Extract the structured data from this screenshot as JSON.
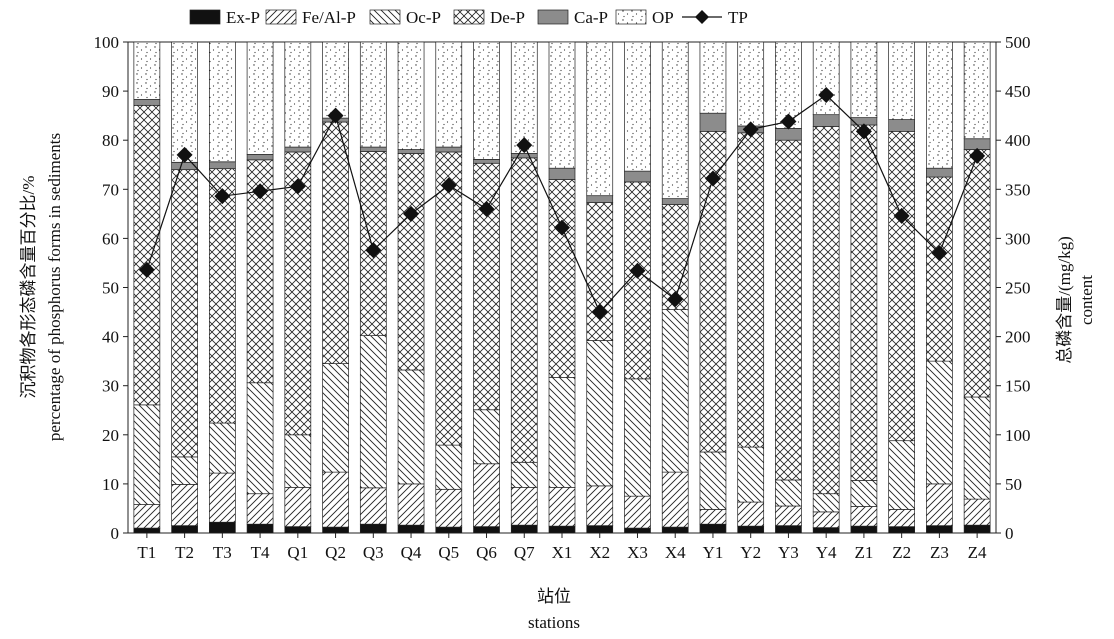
{
  "chart_data": {
    "type": "bar",
    "subtype": "stacked-percent-with-line",
    "categories": [
      "T1",
      "T2",
      "T3",
      "T4",
      "Q1",
      "Q2",
      "Q3",
      "Q4",
      "Q5",
      "Q6",
      "Q7",
      "X1",
      "X2",
      "X3",
      "X4",
      "Y1",
      "Y2",
      "Y3",
      "Y4",
      "Z1",
      "Z2",
      "Z3",
      "Z4"
    ],
    "series": [
      {
        "name": "Ex-P",
        "fill": "solid",
        "color": "#111111",
        "values": [
          1.0,
          1.5,
          2.2,
          1.8,
          1.3,
          1.2,
          1.8,
          1.6,
          1.2,
          1.3,
          1.6,
          1.4,
          1.5,
          1.0,
          1.2,
          1.8,
          1.4,
          1.5,
          1.1,
          1.4,
          1.3,
          1.5,
          1.6
        ]
      },
      {
        "name": "Fe/Al-P",
        "fill": "forward-hatch",
        "values": [
          4.8,
          8.4,
          10.0,
          6.2,
          8.0,
          11.2,
          7.4,
          8.4,
          7.7,
          12.8,
          7.7,
          7.9,
          8.1,
          6.5,
          11.2,
          3.0,
          4.9,
          4.0,
          3.2,
          4.0,
          3.5,
          8.5,
          5.3
        ]
      },
      {
        "name": "Oc-P",
        "fill": "back-hatch",
        "values": [
          20.3,
          5.6,
          10.2,
          22.6,
          10.7,
          22.1,
          31.0,
          23.2,
          9.0,
          11.0,
          5.1,
          22.4,
          29.6,
          23.9,
          33.1,
          11.7,
          11.2,
          5.3,
          3.7,
          5.3,
          14.0,
          25.0,
          20.8
        ]
      },
      {
        "name": "De-P",
        "fill": "cross-hatch",
        "values": [
          61.0,
          58.5,
          51.8,
          45.4,
          57.6,
          49.2,
          37.5,
          44.1,
          59.7,
          50.2,
          62.0,
          40.3,
          28.1,
          40.1,
          21.4,
          65.3,
          64.0,
          69.2,
          74.8,
          72.4,
          63.0,
          37.5,
          50.4
        ]
      },
      {
        "name": "Ca-P",
        "fill": "solid",
        "color": "#8c8c8c",
        "values": [
          1.2,
          1.5,
          1.4,
          1.1,
          1.0,
          0.8,
          0.9,
          0.8,
          1.0,
          0.8,
          0.9,
          2.3,
          1.4,
          2.2,
          1.2,
          3.7,
          1.4,
          2.4,
          2.4,
          1.5,
          2.4,
          1.8,
          2.2
        ]
      },
      {
        "name": "OP",
        "fill": "dots",
        "values": [
          11.7,
          24.5,
          24.4,
          22.9,
          21.4,
          15.5,
          21.4,
          21.9,
          21.4,
          23.9,
          22.7,
          25.7,
          31.3,
          26.3,
          31.9,
          14.5,
          17.1,
          17.6,
          14.8,
          15.4,
          15.8,
          25.7,
          19.7
        ]
      }
    ],
    "line": {
      "name": "TP",
      "marker": "diamond",
      "values": [
        268,
        385,
        343,
        348,
        353,
        425,
        288,
        325,
        354,
        330,
        395,
        311,
        225,
        267,
        238,
        361,
        411,
        419,
        446,
        409,
        323,
        285,
        384
      ]
    },
    "legend": [
      "Ex-P",
      "Fe/Al-P",
      "Oc-P",
      "De-P",
      "Ca-P",
      "OP",
      "TP"
    ],
    "legend_position": "top",
    "xlabel_cn": "站位",
    "xlabel_en": "stations",
    "ylabel_left_cn": "沉积物各形态磷含量百分比/%",
    "ylabel_left_en": "percentage of phosphorus forms in sediments",
    "ylabel_right_cn": "总磷含量/(mg/kg)",
    "ylabel_right_en": "content",
    "ylim_left": [
      0,
      100
    ],
    "ylim_right": [
      0,
      500
    ],
    "yticks_left": [
      0,
      10,
      20,
      30,
      40,
      50,
      60,
      70,
      80,
      90,
      100
    ],
    "yticks_right": [
      0,
      50,
      100,
      150,
      200,
      250,
      300,
      350,
      400,
      450,
      500
    ],
    "grid": false
  }
}
